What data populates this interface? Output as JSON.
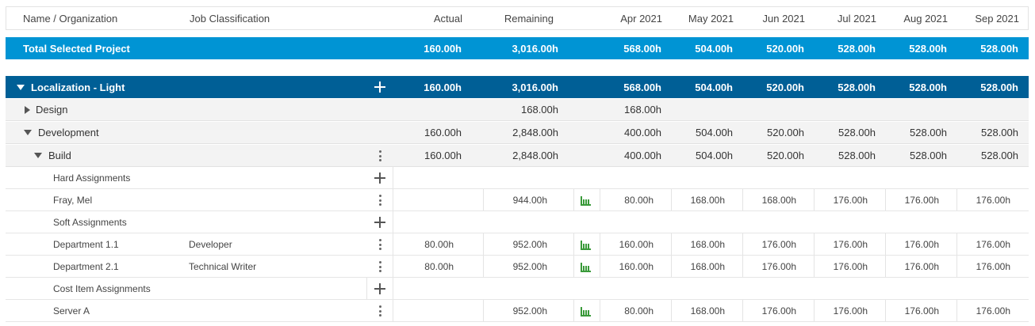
{
  "header": {
    "name_org": "Name / Organization",
    "job_class": "Job Classification",
    "actual": "Actual",
    "remaining": "Remaining",
    "months": [
      "Apr 2021",
      "May 2021",
      "Jun 2021",
      "Jul 2021",
      "Aug 2021",
      "Sep 2021"
    ]
  },
  "total": {
    "label": "Total Selected Project",
    "actual": "160.00h",
    "remaining": "3,016.00h",
    "months": [
      "568.00h",
      "504.00h",
      "520.00h",
      "528.00h",
      "528.00h",
      "528.00h"
    ]
  },
  "project": {
    "label": "Localization - Light",
    "actual": "160.00h",
    "remaining": "3,016.00h",
    "months": [
      "568.00h",
      "504.00h",
      "520.00h",
      "528.00h",
      "528.00h",
      "528.00h"
    ]
  },
  "design": {
    "label": "Design",
    "remaining": "168.00h",
    "months": [
      "168.00h"
    ]
  },
  "development": {
    "label": "Development",
    "actual": "160.00h",
    "remaining": "2,848.00h",
    "months": [
      "400.00h",
      "504.00h",
      "520.00h",
      "528.00h",
      "528.00h",
      "528.00h"
    ]
  },
  "build": {
    "label": "Build",
    "actual": "160.00h",
    "remaining": "2,848.00h",
    "months": [
      "400.00h",
      "504.00h",
      "520.00h",
      "528.00h",
      "528.00h",
      "528.00h"
    ]
  },
  "hard": {
    "label": "Hard Assignments"
  },
  "fray": {
    "label": "Fray, Mel",
    "remaining": "944.00h",
    "months": [
      "80.00h",
      "168.00h",
      "168.00h",
      "176.00h",
      "176.00h",
      "176.00h"
    ]
  },
  "soft": {
    "label": "Soft Assignments"
  },
  "dept11": {
    "label": "Department 1.1",
    "job": "Developer",
    "actual": "80.00h",
    "remaining": "952.00h",
    "months": [
      "160.00h",
      "168.00h",
      "176.00h",
      "176.00h",
      "176.00h",
      "176.00h"
    ]
  },
  "dept21": {
    "label": "Department 2.1",
    "job": "Technical Writer",
    "actual": "80.00h",
    "remaining": "952.00h",
    "months": [
      "160.00h",
      "168.00h",
      "176.00h",
      "176.00h",
      "176.00h",
      "176.00h"
    ]
  },
  "cost": {
    "label": "Cost Item Assignments"
  },
  "server": {
    "label": "Server A",
    "remaining": "952.00h",
    "months": [
      "80.00h",
      "168.00h",
      "176.00h",
      "176.00h",
      "176.00h",
      "176.00h"
    ]
  },
  "colors": {
    "total_bg": "#0094d4",
    "project_bg": "#005f96",
    "chart_icon": "#3a9a3a"
  }
}
